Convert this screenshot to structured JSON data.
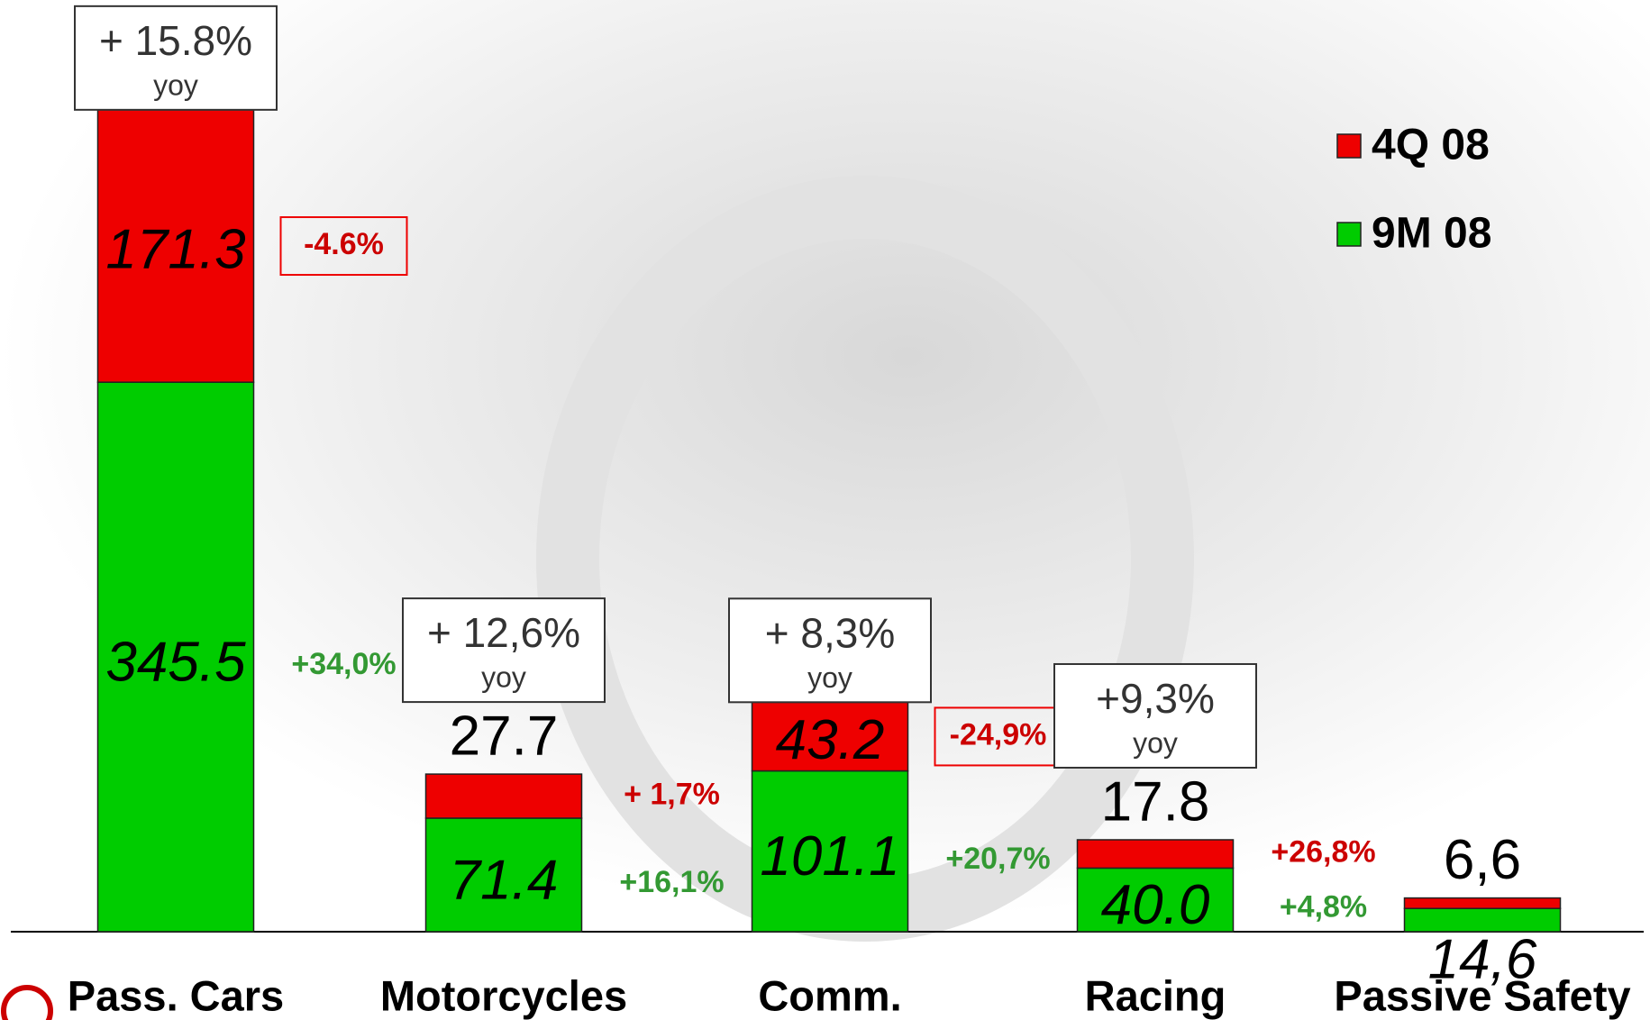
{
  "chart_data": {
    "type": "stacked_bar",
    "categories": [
      "Pass. Cars",
      "Motorcycles",
      "Comm.",
      "Racing",
      "Passive Safety"
    ],
    "series": [
      {
        "name": "9M 08",
        "color": "#00cc00",
        "values": [
          345.5,
          71.4,
          101.1,
          40.0,
          14.6
        ],
        "value_labels": [
          "345.5",
          "71.4",
          "101.1",
          "40.0",
          "14,6"
        ],
        "growth_labels": [
          "+34,0%",
          "+16,1%",
          "+20,7%",
          "+4,8%",
          null
        ],
        "growth_color": "#339933"
      },
      {
        "name": "4Q 08",
        "color": "#ee0000",
        "values": [
          171.3,
          27.7,
          43.2,
          17.8,
          6.6
        ],
        "value_labels": [
          "171.3",
          "27.7",
          "43.2",
          "17.8",
          "6,6"
        ],
        "growth_labels": [
          "-4.6%",
          "+ 1,7%",
          "-24,9%",
          "+26,8%",
          null
        ],
        "growth_color": "#cc0000"
      }
    ],
    "yoy_labels": [
      "+ 15.8%",
      "+ 12,6%",
      "+ 8,3%",
      "+9,3%",
      null
    ],
    "yoy_text": "yoy",
    "legend": "top-right"
  }
}
